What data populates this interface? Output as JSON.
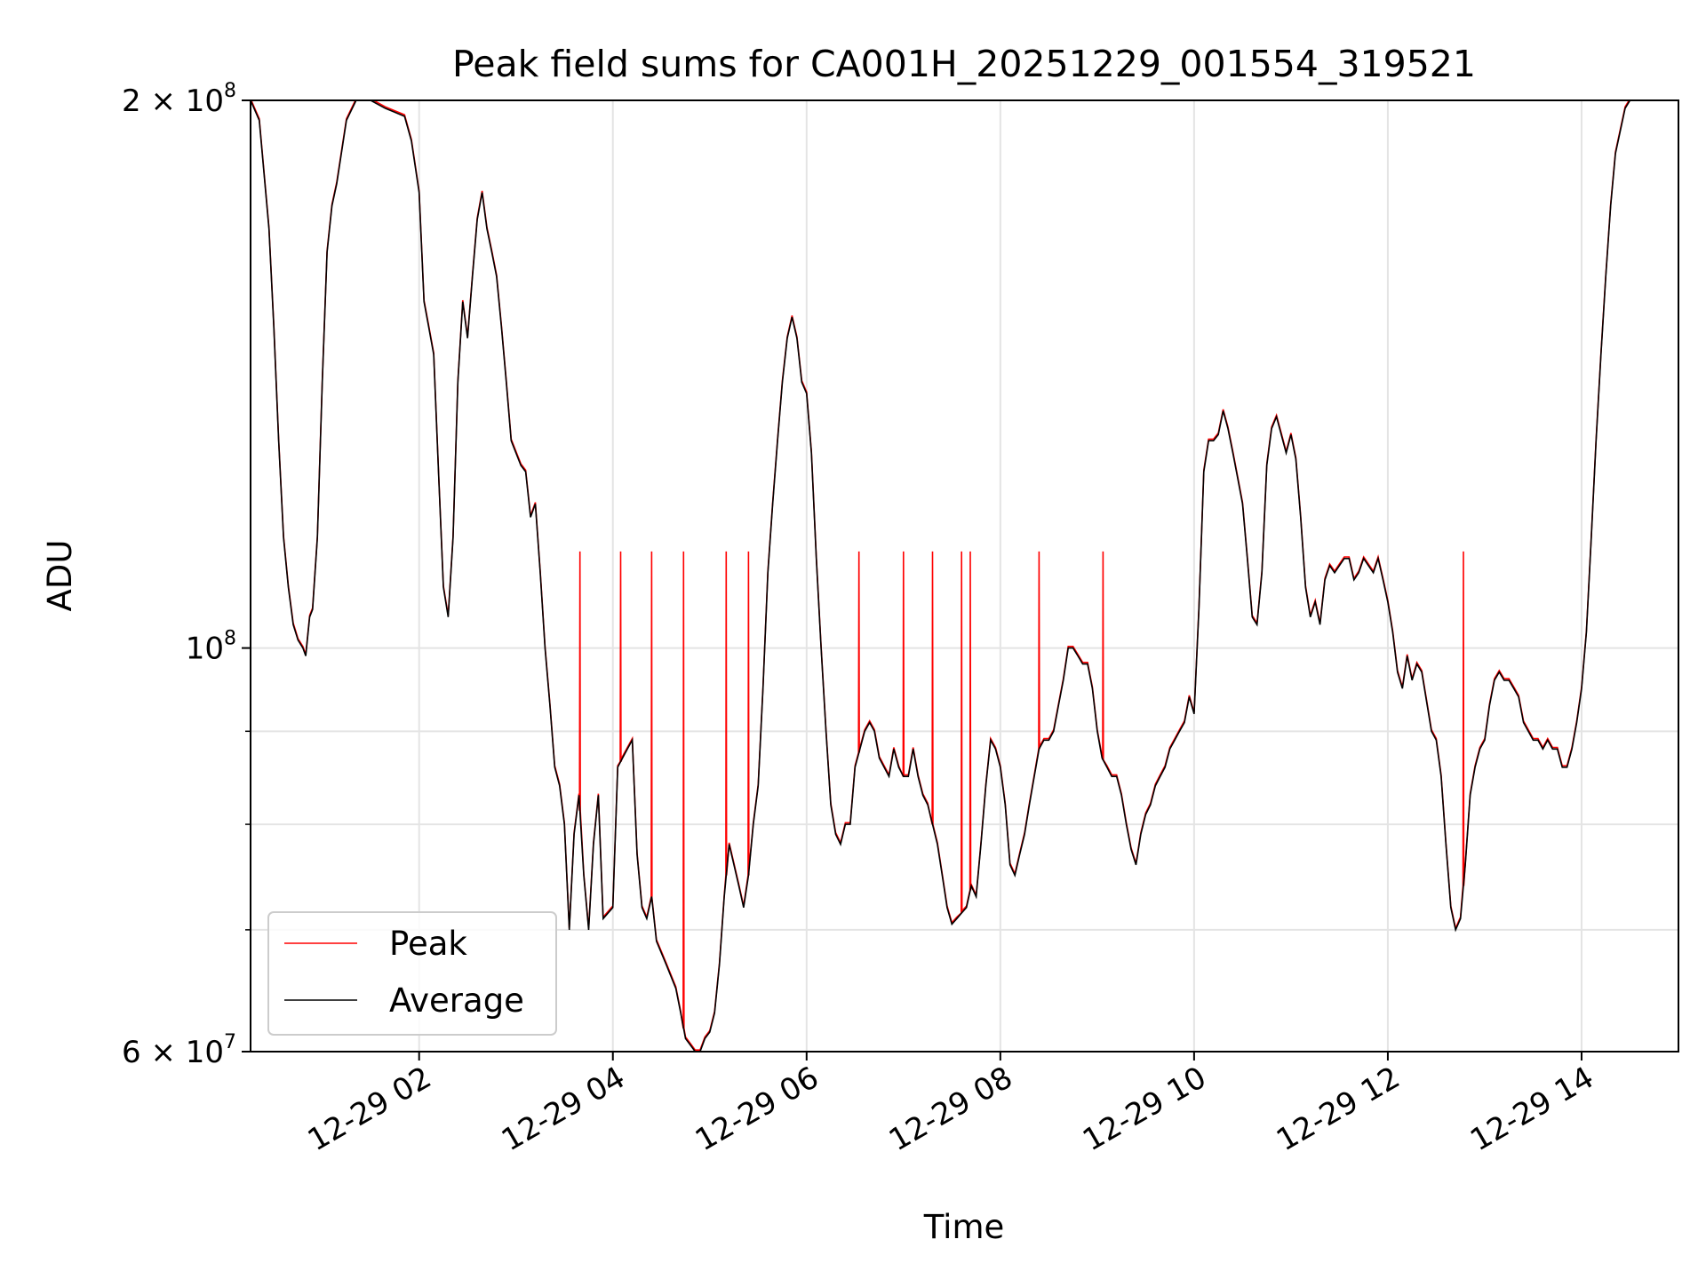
{
  "chart_data": {
    "type": "line",
    "title": "Peak field sums for CA001H_20251229_001554_319521",
    "xlabel": "Time",
    "ylabel": "ADU",
    "yscale": "log",
    "xlim": [
      0.26,
      15.0
    ],
    "ylim": [
      60000000,
      200000000
    ],
    "grid": true,
    "legend_position": "lower-left",
    "x_ticks": [
      {
        "value": 2,
        "label": "12-29 02"
      },
      {
        "value": 4,
        "label": "12-29 04"
      },
      {
        "value": 6,
        "label": "12-29 06"
      },
      {
        "value": 8,
        "label": "12-29 08"
      },
      {
        "value": 10,
        "label": "12-29 10"
      },
      {
        "value": 12,
        "label": "12-29 12"
      },
      {
        "value": 14,
        "label": "12-29 14"
      }
    ],
    "y_ticks": [
      {
        "value": 200000000,
        "mantissa": "2",
        "exponent": "8"
      },
      {
        "value": 100000000,
        "mantissa": "",
        "exponent": "8"
      },
      {
        "value": 60000000,
        "mantissa": "6",
        "exponent": "7"
      }
    ],
    "y_minor_gridlines": [
      70000000,
      80000000,
      90000000
    ],
    "series": [
      {
        "name": "Average",
        "color": "#000000",
        "points": [
          [
            0.26,
            200
          ],
          [
            0.35,
            195
          ],
          [
            0.45,
            170
          ],
          [
            0.5,
            150
          ],
          [
            0.55,
            130
          ],
          [
            0.6,
            115
          ],
          [
            0.65,
            108
          ],
          [
            0.7,
            103
          ],
          [
            0.75,
            101
          ],
          [
            0.8,
            100
          ],
          [
            0.83,
            99
          ],
          [
            0.87,
            104
          ],
          [
            0.9,
            105
          ],
          [
            0.95,
            115
          ],
          [
            1.0,
            140
          ],
          [
            1.05,
            165
          ],
          [
            1.1,
            175
          ],
          [
            1.15,
            180
          ],
          [
            1.25,
            195
          ],
          [
            1.35,
            200
          ],
          [
            1.5,
            200
          ],
          [
            1.65,
            198
          ],
          [
            1.75,
            197
          ],
          [
            1.85,
            196
          ],
          [
            1.92,
            190
          ],
          [
            2.0,
            178
          ],
          [
            2.05,
            155
          ],
          [
            2.1,
            150
          ],
          [
            2.15,
            145
          ],
          [
            2.2,
            125
          ],
          [
            2.25,
            108
          ],
          [
            2.3,
            104
          ],
          [
            2.35,
            115
          ],
          [
            2.4,
            140
          ],
          [
            2.45,
            155
          ],
          [
            2.5,
            148
          ],
          [
            2.55,
            160
          ],
          [
            2.6,
            172
          ],
          [
            2.65,
            178
          ],
          [
            2.7,
            170
          ],
          [
            2.75,
            165
          ],
          [
            2.8,
            160
          ],
          [
            2.85,
            150
          ],
          [
            2.9,
            140
          ],
          [
            2.95,
            130
          ],
          [
            3.0,
            128
          ],
          [
            3.05,
            126
          ],
          [
            3.1,
            125
          ],
          [
            3.15,
            118
          ],
          [
            3.2,
            120
          ],
          [
            3.25,
            110
          ],
          [
            3.3,
            100
          ],
          [
            3.35,
            93
          ],
          [
            3.4,
            86
          ],
          [
            3.45,
            84
          ],
          [
            3.5,
            80
          ],
          [
            3.55,
            70
          ],
          [
            3.6,
            79
          ],
          [
            3.65,
            83
          ],
          [
            3.7,
            75
          ],
          [
            3.75,
            70
          ],
          [
            3.8,
            78
          ],
          [
            3.85,
            83
          ],
          [
            3.9,
            71
          ],
          [
            4.0,
            72
          ],
          [
            4.05,
            86
          ],
          [
            4.1,
            87
          ],
          [
            4.15,
            88
          ],
          [
            4.2,
            89
          ],
          [
            4.25,
            77
          ],
          [
            4.3,
            72
          ],
          [
            4.35,
            71
          ],
          [
            4.4,
            73
          ],
          [
            4.45,
            69
          ],
          [
            4.55,
            67
          ],
          [
            4.65,
            65
          ],
          [
            4.7,
            63
          ],
          [
            4.75,
            61
          ],
          [
            4.8,
            60.5
          ],
          [
            4.85,
            60
          ],
          [
            4.9,
            60
          ],
          [
            4.95,
            61
          ],
          [
            5.0,
            61.5
          ],
          [
            5.05,
            63
          ],
          [
            5.1,
            67
          ],
          [
            5.15,
            73
          ],
          [
            5.2,
            78
          ],
          [
            5.25,
            76
          ],
          [
            5.3,
            74
          ],
          [
            5.35,
            72
          ],
          [
            5.4,
            75
          ],
          [
            5.45,
            80
          ],
          [
            5.5,
            84
          ],
          [
            5.55,
            95
          ],
          [
            5.6,
            110
          ],
          [
            5.65,
            120
          ],
          [
            5.7,
            130
          ],
          [
            5.75,
            140
          ],
          [
            5.8,
            148
          ],
          [
            5.85,
            152
          ],
          [
            5.9,
            148
          ],
          [
            5.95,
            140
          ],
          [
            6.0,
            138
          ],
          [
            6.05,
            128
          ],
          [
            6.1,
            112
          ],
          [
            6.15,
            100
          ],
          [
            6.2,
            90
          ],
          [
            6.25,
            82
          ],
          [
            6.3,
            79
          ],
          [
            6.35,
            78
          ],
          [
            6.4,
            80
          ],
          [
            6.45,
            80
          ],
          [
            6.5,
            86
          ],
          [
            6.55,
            88
          ],
          [
            6.6,
            90
          ],
          [
            6.65,
            91
          ],
          [
            6.7,
            90
          ],
          [
            6.75,
            87
          ],
          [
            6.8,
            86
          ],
          [
            6.85,
            85
          ],
          [
            6.9,
            88
          ],
          [
            6.95,
            86
          ],
          [
            7.0,
            85
          ],
          [
            7.05,
            85
          ],
          [
            7.1,
            88
          ],
          [
            7.15,
            85
          ],
          [
            7.2,
            83
          ],
          [
            7.25,
            82
          ],
          [
            7.3,
            80
          ],
          [
            7.35,
            78
          ],
          [
            7.4,
            75
          ],
          [
            7.45,
            72
          ],
          [
            7.5,
            70.5
          ],
          [
            7.55,
            71
          ],
          [
            7.6,
            71.5
          ],
          [
            7.65,
            72
          ],
          [
            7.7,
            74
          ],
          [
            7.75,
            73
          ],
          [
            7.8,
            78
          ],
          [
            7.85,
            84
          ],
          [
            7.9,
            89
          ],
          [
            7.95,
            88
          ],
          [
            8.0,
            86
          ],
          [
            8.05,
            82
          ],
          [
            8.1,
            76
          ],
          [
            8.15,
            75
          ],
          [
            8.2,
            77
          ],
          [
            8.25,
            79
          ],
          [
            8.3,
            82
          ],
          [
            8.35,
            85
          ],
          [
            8.4,
            88
          ],
          [
            8.45,
            89
          ],
          [
            8.5,
            89
          ],
          [
            8.55,
            90
          ],
          [
            8.6,
            93
          ],
          [
            8.65,
            96
          ],
          [
            8.7,
            100
          ],
          [
            8.75,
            100
          ],
          [
            8.8,
            99
          ],
          [
            8.85,
            98
          ],
          [
            8.9,
            98
          ],
          [
            8.95,
            95
          ],
          [
            9.0,
            90
          ],
          [
            9.05,
            87
          ],
          [
            9.1,
            86
          ],
          [
            9.15,
            85
          ],
          [
            9.2,
            85
          ],
          [
            9.25,
            83
          ],
          [
            9.3,
            80
          ],
          [
            9.35,
            77.5
          ],
          [
            9.4,
            76
          ],
          [
            9.45,
            79
          ],
          [
            9.5,
            81
          ],
          [
            9.55,
            82
          ],
          [
            9.6,
            84
          ],
          [
            9.65,
            85
          ],
          [
            9.7,
            86
          ],
          [
            9.75,
            88
          ],
          [
            9.8,
            89
          ],
          [
            9.85,
            90
          ],
          [
            9.9,
            91
          ],
          [
            9.95,
            94
          ],
          [
            10.0,
            92
          ],
          [
            10.05,
            105
          ],
          [
            10.1,
            125
          ],
          [
            10.15,
            130
          ],
          [
            10.2,
            130
          ],
          [
            10.25,
            131
          ],
          [
            10.3,
            135
          ],
          [
            10.35,
            132
          ],
          [
            10.4,
            128
          ],
          [
            10.45,
            124
          ],
          [
            10.5,
            120
          ],
          [
            10.55,
            112
          ],
          [
            10.6,
            104
          ],
          [
            10.65,
            103
          ],
          [
            10.7,
            110
          ],
          [
            10.75,
            126
          ],
          [
            10.8,
            132
          ],
          [
            10.85,
            134
          ],
          [
            10.9,
            131
          ],
          [
            10.95,
            128
          ],
          [
            11.0,
            131
          ],
          [
            11.05,
            127
          ],
          [
            11.1,
            118
          ],
          [
            11.15,
            108
          ],
          [
            11.2,
            104
          ],
          [
            11.25,
            106
          ],
          [
            11.3,
            103
          ],
          [
            11.35,
            109
          ],
          [
            11.4,
            111
          ],
          [
            11.45,
            110
          ],
          [
            11.5,
            111
          ],
          [
            11.55,
            112
          ],
          [
            11.6,
            112
          ],
          [
            11.65,
            109
          ],
          [
            11.7,
            110
          ],
          [
            11.75,
            112
          ],
          [
            11.8,
            111
          ],
          [
            11.85,
            110
          ],
          [
            11.9,
            112
          ],
          [
            11.95,
            109
          ],
          [
            12.0,
            106
          ],
          [
            12.05,
            102
          ],
          [
            12.1,
            97
          ],
          [
            12.15,
            95
          ],
          [
            12.2,
            99
          ],
          [
            12.25,
            96
          ],
          [
            12.3,
            98
          ],
          [
            12.35,
            97
          ],
          [
            12.45,
            90
          ],
          [
            12.5,
            89
          ],
          [
            12.55,
            85
          ],
          [
            12.6,
            78
          ],
          [
            12.65,
            72
          ],
          [
            12.7,
            70
          ],
          [
            12.75,
            71
          ],
          [
            12.8,
            76
          ],
          [
            12.85,
            83
          ],
          [
            12.9,
            86
          ],
          [
            12.95,
            88
          ],
          [
            13.0,
            89
          ],
          [
            13.05,
            93
          ],
          [
            13.1,
            96
          ],
          [
            13.15,
            97
          ],
          [
            13.2,
            96
          ],
          [
            13.25,
            96
          ],
          [
            13.3,
            95
          ],
          [
            13.35,
            94
          ],
          [
            13.4,
            91
          ],
          [
            13.45,
            90
          ],
          [
            13.5,
            89
          ],
          [
            13.55,
            89
          ],
          [
            13.6,
            88
          ],
          [
            13.65,
            89
          ],
          [
            13.7,
            88
          ],
          [
            13.75,
            88
          ],
          [
            13.8,
            86
          ],
          [
            13.85,
            86
          ],
          [
            13.9,
            88
          ],
          [
            13.95,
            91
          ],
          [
            14.0,
            95
          ],
          [
            14.05,
            102
          ],
          [
            14.1,
            115
          ],
          [
            14.15,
            130
          ],
          [
            14.2,
            145
          ],
          [
            14.25,
            160
          ],
          [
            14.3,
            175
          ],
          [
            14.35,
            187
          ],
          [
            14.45,
            198
          ],
          [
            14.5,
            200
          ],
          [
            15.0,
            200
          ]
        ]
      },
      {
        "name": "Peak",
        "color": "#ff0000",
        "spikes": [
          3.66,
          4.08,
          4.4,
          4.73,
          5.17,
          5.4,
          6.54,
          7.0,
          7.3,
          7.6,
          7.69,
          8.4,
          9.06,
          12.78
        ],
        "spike_value": 113
      }
    ],
    "legend": [
      {
        "label": "Peak",
        "color": "#ff0000"
      },
      {
        "label": "Average",
        "color": "#000000"
      }
    ]
  }
}
